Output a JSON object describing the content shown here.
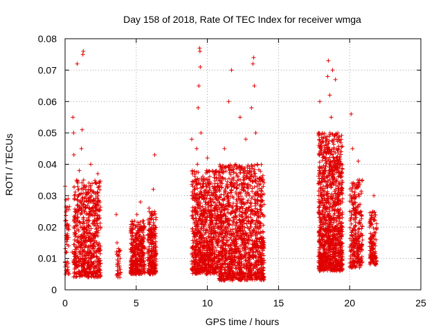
{
  "chart_data": {
    "type": "scatter",
    "title": "Day 158 of 2018, Rate Of TEC Index for receiver wmga",
    "xlabel": "GPS time / hours",
    "ylabel": "ROTI / TECUs",
    "xlim": [
      0,
      25
    ],
    "ylim": [
      0,
      0.08
    ],
    "xticks": [
      0,
      5,
      10,
      15,
      20,
      25
    ],
    "xtick_labels": [
      "0",
      "5",
      "10",
      "15",
      "20",
      "25"
    ],
    "yticks": [
      0,
      0.01,
      0.02,
      0.03,
      0.04,
      0.05,
      0.06,
      0.07,
      0.08
    ],
    "ytick_labels": [
      "0",
      "0.01",
      "0.02",
      "0.03",
      "0.04",
      "0.05",
      "0.06",
      "0.07",
      "0.08"
    ],
    "grid": true,
    "marker": "+",
    "marker_color": "#e00000",
    "series": [
      {
        "name": "ROTI",
        "points": [
          [
            0.0,
            0.033
          ],
          [
            0.05,
            0.022
          ],
          [
            0.1,
            0.016
          ],
          [
            0.12,
            0.012
          ],
          [
            0.15,
            0.009
          ],
          [
            0.2,
            0.02
          ],
          [
            0.25,
            0.014
          ],
          [
            0.5,
            0.012
          ],
          [
            0.55,
            0.055
          ],
          [
            0.6,
            0.05
          ],
          [
            0.62,
            0.043
          ],
          [
            0.65,
            0.03
          ],
          [
            0.7,
            0.025
          ],
          [
            0.72,
            0.018
          ],
          [
            0.75,
            0.01
          ],
          [
            0.78,
            0.007
          ],
          [
            0.8,
            0.005
          ],
          [
            0.85,
            0.072
          ],
          [
            0.9,
            0.022
          ],
          [
            0.95,
            0.015
          ],
          [
            1.0,
            0.038
          ],
          [
            1.05,
            0.028
          ],
          [
            1.1,
            0.02
          ],
          [
            1.15,
            0.045
          ],
          [
            1.2,
            0.051
          ],
          [
            1.25,
            0.075
          ],
          [
            1.28,
            0.076
          ],
          [
            1.3,
            0.035
          ],
          [
            1.35,
            0.025
          ],
          [
            1.4,
            0.015
          ],
          [
            1.45,
            0.01
          ],
          [
            1.5,
            0.033
          ],
          [
            1.55,
            0.022
          ],
          [
            1.6,
            0.012
          ],
          [
            1.7,
            0.028
          ],
          [
            1.75,
            0.018
          ],
          [
            1.8,
            0.04
          ],
          [
            1.85,
            0.008
          ],
          [
            1.9,
            0.014
          ],
          [
            2.0,
            0.025
          ],
          [
            2.05,
            0.006
          ],
          [
            2.1,
            0.018
          ],
          [
            2.2,
            0.012
          ],
          [
            2.3,
            0.037
          ],
          [
            2.35,
            0.02
          ],
          [
            2.4,
            0.01
          ],
          [
            2.45,
            0.005
          ],
          [
            3.6,
            0.024
          ],
          [
            3.65,
            0.015
          ],
          [
            3.7,
            0.008
          ],
          [
            3.75,
            0.005
          ],
          [
            3.8,
            0.012
          ],
          [
            3.85,
            0.004
          ],
          [
            4.6,
            0.013
          ],
          [
            4.65,
            0.009
          ],
          [
            4.7,
            0.018
          ],
          [
            4.75,
            0.021
          ],
          [
            4.8,
            0.012
          ],
          [
            4.85,
            0.008
          ],
          [
            4.9,
            0.016
          ],
          [
            4.95,
            0.006
          ],
          [
            5.0,
            0.011
          ],
          [
            5.05,
            0.024
          ],
          [
            5.1,
            0.007
          ],
          [
            5.15,
            0.014
          ],
          [
            5.2,
            0.019
          ],
          [
            5.3,
            0.028
          ],
          [
            5.4,
            0.01
          ],
          [
            5.5,
            0.022
          ],
          [
            5.55,
            0.009
          ],
          [
            5.9,
            0.026
          ],
          [
            6.0,
            0.015
          ],
          [
            6.05,
            0.008
          ],
          [
            6.1,
            0.02
          ],
          [
            6.15,
            0.005
          ],
          [
            6.2,
            0.032
          ],
          [
            6.25,
            0.012
          ],
          [
            6.3,
            0.043
          ],
          [
            6.35,
            0.017
          ],
          [
            8.9,
            0.048
          ],
          [
            9.0,
            0.03
          ],
          [
            9.05,
            0.018
          ],
          [
            9.1,
            0.012
          ],
          [
            9.15,
            0.008
          ],
          [
            9.2,
            0.025
          ],
          [
            9.25,
            0.045
          ],
          [
            9.3,
            0.04
          ],
          [
            9.35,
            0.058
          ],
          [
            9.4,
            0.065
          ],
          [
            9.45,
            0.077
          ],
          [
            9.48,
            0.076
          ],
          [
            9.5,
            0.071
          ],
          [
            9.55,
            0.05
          ],
          [
            9.6,
            0.035
          ],
          [
            9.65,
            0.022
          ],
          [
            9.7,
            0.015
          ],
          [
            9.75,
            0.01
          ],
          [
            9.8,
            0.006
          ],
          [
            9.85,
            0.028
          ],
          [
            9.9,
            0.019
          ],
          [
            10.0,
            0.042
          ],
          [
            10.1,
            0.031
          ],
          [
            10.2,
            0.013
          ],
          [
            10.3,
            0.02
          ],
          [
            10.4,
            0.009
          ],
          [
            10.5,
            0.026
          ],
          [
            10.6,
            0.016
          ],
          [
            10.8,
            0.035
          ],
          [
            10.9,
            0.012
          ],
          [
            11.0,
            0.022
          ],
          [
            11.1,
            0.008
          ],
          [
            11.2,
            0.045
          ],
          [
            11.3,
            0.018
          ],
          [
            11.4,
            0.03
          ],
          [
            11.5,
            0.06
          ],
          [
            11.6,
            0.038
          ],
          [
            11.7,
            0.07
          ],
          [
            11.8,
            0.025
          ],
          [
            11.9,
            0.014
          ],
          [
            12.0,
            0.04
          ],
          [
            12.1,
            0.02
          ],
          [
            12.2,
            0.01
          ],
          [
            12.3,
            0.055
          ],
          [
            12.4,
            0.032
          ],
          [
            12.5,
            0.028
          ],
          [
            12.6,
            0.015
          ],
          [
            12.7,
            0.048
          ],
          [
            12.8,
            0.036
          ],
          [
            12.9,
            0.022
          ],
          [
            13.0,
            0.012
          ],
          [
            13.1,
            0.058
          ],
          [
            13.2,
            0.072
          ],
          [
            13.25,
            0.074
          ],
          [
            13.3,
            0.065
          ],
          [
            13.4,
            0.05
          ],
          [
            13.5,
            0.04
          ],
          [
            13.6,
            0.03
          ],
          [
            13.7,
            0.018
          ],
          [
            13.8,
            0.01
          ],
          [
            13.9,
            0.005
          ],
          [
            17.8,
            0.05
          ],
          [
            17.9,
            0.06
          ],
          [
            18.0,
            0.045
          ],
          [
            18.1,
            0.038
          ],
          [
            18.2,
            0.03
          ],
          [
            18.3,
            0.022
          ],
          [
            18.4,
            0.015
          ],
          [
            18.45,
            0.068
          ],
          [
            18.5,
            0.073
          ],
          [
            18.6,
            0.062
          ],
          [
            18.7,
            0.055
          ],
          [
            18.8,
            0.07
          ],
          [
            18.9,
            0.048
          ],
          [
            19.0,
            0.067
          ],
          [
            19.1,
            0.035
          ],
          [
            19.2,
            0.025
          ],
          [
            19.3,
            0.015
          ],
          [
            19.35,
            0.008
          ],
          [
            19.4,
            0.04
          ],
          [
            20.1,
            0.056
          ],
          [
            20.2,
            0.045
          ],
          [
            20.3,
            0.03
          ],
          [
            20.4,
            0.018
          ],
          [
            20.5,
            0.01
          ],
          [
            20.6,
            0.041
          ],
          [
            20.7,
            0.035
          ],
          [
            20.8,
            0.025
          ],
          [
            21.4,
            0.02
          ],
          [
            21.5,
            0.015
          ],
          [
            21.6,
            0.012
          ],
          [
            21.7,
            0.03
          ],
          [
            21.8,
            0.008
          ]
        ],
        "clusters": [
          {
            "x": [
              0.0,
              0.3
            ],
            "y": [
              0.005,
              0.03
            ],
            "n": 45
          },
          {
            "x": [
              0.6,
              2.5
            ],
            "y": [
              0.004,
              0.035
            ],
            "n": 650
          },
          {
            "x": [
              3.6,
              3.9
            ],
            "y": [
              0.004,
              0.014
            ],
            "n": 30
          },
          {
            "x": [
              4.6,
              5.6
            ],
            "y": [
              0.005,
              0.022
            ],
            "n": 330
          },
          {
            "x": [
              5.8,
              6.4
            ],
            "y": [
              0.005,
              0.025
            ],
            "n": 220
          },
          {
            "x": [
              8.9,
              10.8
            ],
            "y": [
              0.005,
              0.038
            ],
            "n": 800
          },
          {
            "x": [
              10.8,
              14.0
            ],
            "y": [
              0.003,
              0.04
            ],
            "n": 1300
          },
          {
            "x": [
              17.8,
              19.5
            ],
            "y": [
              0.006,
              0.05
            ],
            "n": 1100
          },
          {
            "x": [
              20.0,
              20.9
            ],
            "y": [
              0.007,
              0.035
            ],
            "n": 260
          },
          {
            "x": [
              21.4,
              21.9
            ],
            "y": [
              0.008,
              0.025
            ],
            "n": 120
          }
        ]
      }
    ]
  }
}
